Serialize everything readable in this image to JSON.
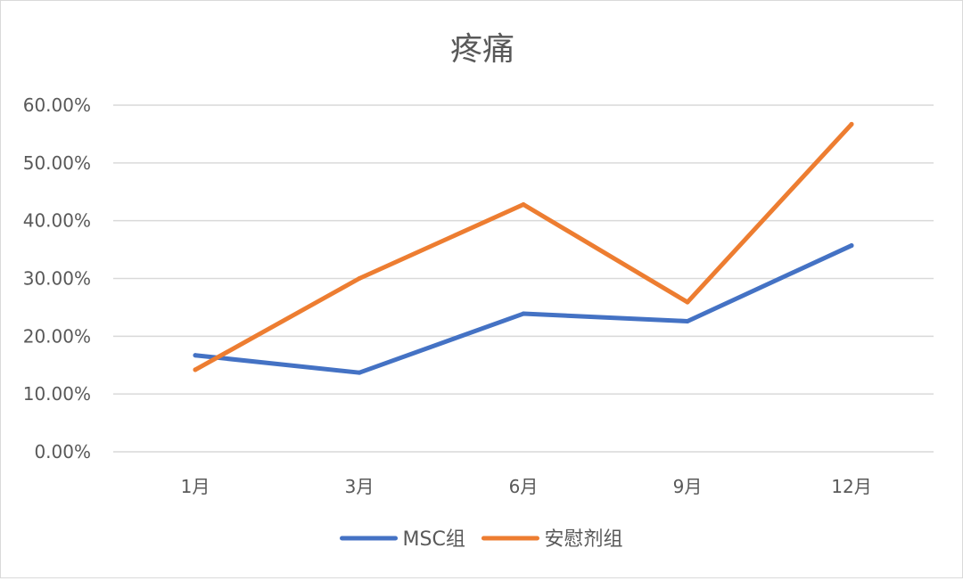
{
  "chart_data": {
    "type": "line",
    "title": "疼痛",
    "categories": [
      "1月",
      "3月",
      "6月",
      "9月",
      "12月"
    ],
    "series": [
      {
        "name": "MSC组",
        "color": "#4472C4",
        "values": [
          0.167,
          0.137,
          0.239,
          0.226,
          0.357
        ]
      },
      {
        "name": "安慰剂组",
        "color": "#ED7D31",
        "values": [
          0.142,
          0.3,
          0.428,
          0.259,
          0.567
        ]
      }
    ],
    "ylim": [
      0,
      0.6
    ],
    "y_ticks": [
      0,
      0.1,
      0.2,
      0.3,
      0.4,
      0.5,
      0.6
    ],
    "y_tick_labels": [
      "0.00%",
      "10.00%",
      "20.00%",
      "30.00%",
      "40.00%",
      "50.00%",
      "60.00%"
    ],
    "grid": true,
    "legend_position": "bottom",
    "gridline_color": "#d9d9d9",
    "text_color": "#595959"
  }
}
